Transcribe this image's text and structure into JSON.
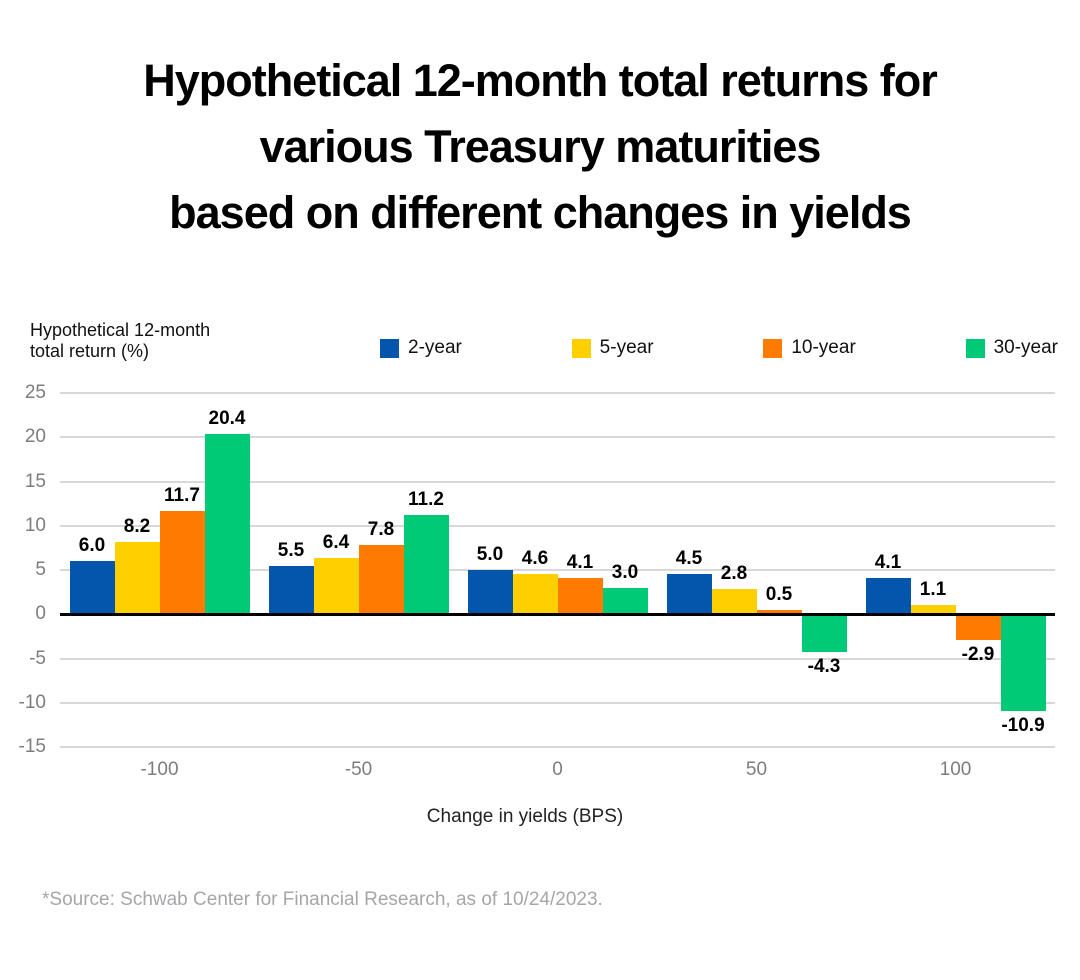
{
  "chart_data": {
    "type": "bar",
    "title": "Hypothetical 12-month total returns for\nvarious Treasury maturities\nbased on different changes in yields",
    "ylabel": "Hypothetical 12-month\ntotal return (%)",
    "xlabel": "Change in yields (BPS)",
    "categories": [
      "-100",
      "-50",
      "0",
      "50",
      "100"
    ],
    "series": [
      {
        "name": "2-year",
        "color": "#0456AC",
        "values": [
          6.0,
          5.5,
          5.0,
          4.5,
          4.1
        ]
      },
      {
        "name": "5-year",
        "color": "#FFCF00",
        "values": [
          8.2,
          6.4,
          4.6,
          2.8,
          1.1
        ]
      },
      {
        "name": "10-year",
        "color": "#FF7A00",
        "values": [
          11.7,
          7.8,
          4.1,
          0.5,
          -2.9
        ]
      },
      {
        "name": "30-year",
        "color": "#00CA76",
        "values": [
          20.4,
          11.2,
          3.0,
          -4.3,
          -10.9
        ]
      }
    ],
    "yticks": [
      25,
      20,
      15,
      10,
      5,
      0,
      -5,
      -10,
      -15
    ],
    "ylim": [
      -15,
      25
    ],
    "grid": true,
    "legend_position": "top",
    "value_labels": true,
    "value_label_format": "one-decimal"
  },
  "source_note": "*Source: Schwab Center for Financial Research, as of 10/24/2023.",
  "colors": {
    "background": "#FFFFFF",
    "grid": "#D8D8D8",
    "zero_line": "#000000",
    "tick_label": "#7D7D7D",
    "value_label": "#000000",
    "axis_title": "#222222",
    "source_text": "#A6A6AA",
    "title_text": "#000000"
  }
}
